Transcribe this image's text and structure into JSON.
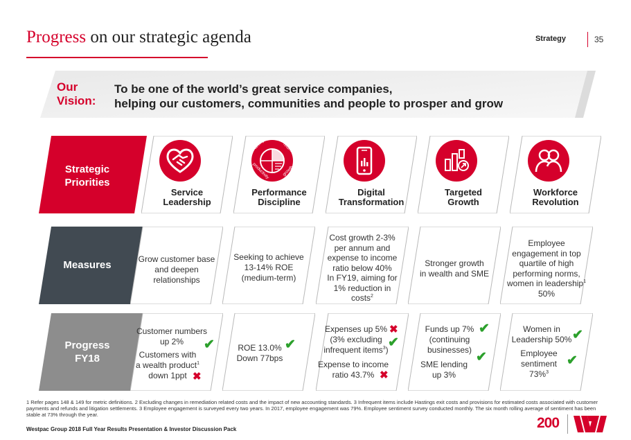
{
  "header": {
    "title_accent": "Progress",
    "title_rest": " on our strategic agenda",
    "section": "Strategy",
    "page": "35"
  },
  "vision": {
    "label_line1": "Our",
    "label_line2": "Vision:",
    "text_line1": "To be one of the world’s great service companies,",
    "text_line2": "helping our customers, communities and people to prosper and grow"
  },
  "rows": {
    "priorities_line1": "Strategic",
    "priorities_line2": "Priorities",
    "measures": "Measures",
    "progress_line1": "Progress",
    "progress_line2": "FY18"
  },
  "priorities": [
    {
      "line1": "Service",
      "line2": "Leadership",
      "icon": "handshake-heart-icon"
    },
    {
      "line1": "Performance",
      "line2": "Discipline",
      "icon": "performance-wheel-icon",
      "wheel_words": [
        "strength",
        "return",
        "productivity",
        "growth"
      ]
    },
    {
      "line1": "Digital",
      "line2": "Transformation",
      "icon": "smartphone-icon"
    },
    {
      "line1": "Targeted",
      "line2": "Growth",
      "icon": "bar-chart-growth-icon"
    },
    {
      "line1": "Workforce",
      "line2": "Revolution",
      "icon": "people-icon"
    }
  ],
  "measures": [
    {
      "lines": [
        "Grow customer base",
        "and deepen",
        "relationships"
      ]
    },
    {
      "lines": [
        "Seeking to achieve",
        "13-14% ROE",
        "(medium-term)"
      ]
    },
    {
      "lines": [
        "Cost growth 2-3%",
        "per annum and",
        "expense to income",
        "ratio below 40%",
        "In FY19, aiming for",
        "1% reduction in",
        "costs"
      ],
      "sup": "2"
    },
    {
      "lines": [
        "Stronger growth",
        "in wealth and SME"
      ]
    },
    {
      "lines": [
        "Employee",
        "engagement in top",
        "quartile of high",
        "performing norms,",
        "women in leadership",
        "50%"
      ],
      "sup": "1"
    }
  ],
  "progress": {
    "p1": {
      "a1": "Customer numbers",
      "a2": "up 2%",
      "b1": "Customers with",
      "b2": "a wealth product",
      "b2_sup": "1",
      "b3": "down 1ppt"
    },
    "p2": {
      "a1": "ROE 13.0%",
      "a2": "Down 77bps"
    },
    "p3": {
      "a1": "Expenses up 5%",
      "a2": "(3% excluding",
      "a3": "infrequent items",
      "a3_sup": "3",
      "a3_end": ")",
      "b1": "Expense to income",
      "b2": "ratio 43.7%"
    },
    "p4": {
      "a1": "Funds up 7%",
      "a2": "(continuing",
      "a3": "businesses)",
      "b1": "SME lending",
      "b2": "up 3%"
    },
    "p5": {
      "a1": "Women in",
      "a2": "Leadership 50%",
      "b1": "Employee",
      "b2": "sentiment",
      "b3": "73%",
      "b3_sup": "3"
    }
  },
  "marks": {
    "tick": "✔",
    "cross": "✖"
  },
  "footnote": "1 Refer pages 148 & 149  for metric definitions.   2 Excluding changes in remediation related costs and the impact of new accounting standards.  3 Infrequent items include Hastings exit costs and provisions for estimated costs associated with customer payments and refunds and litigation settlements.  3 Employee engagement is surveyed every two years.  In 2017, employee engagement was 79%.  Employee sentiment survey conducted monthly.  The six month rolling average of sentiment has been stable at 73% through the year.",
  "footer": "Westpac Group 2018 Full Year Results Presentation & Investor Discussion Pack",
  "logo_text": "200",
  "colors": {
    "brand_red": "#d5002b",
    "slate": "#414a52",
    "grey": "#8d8d8d",
    "tick_green": "#2ca02c"
  }
}
